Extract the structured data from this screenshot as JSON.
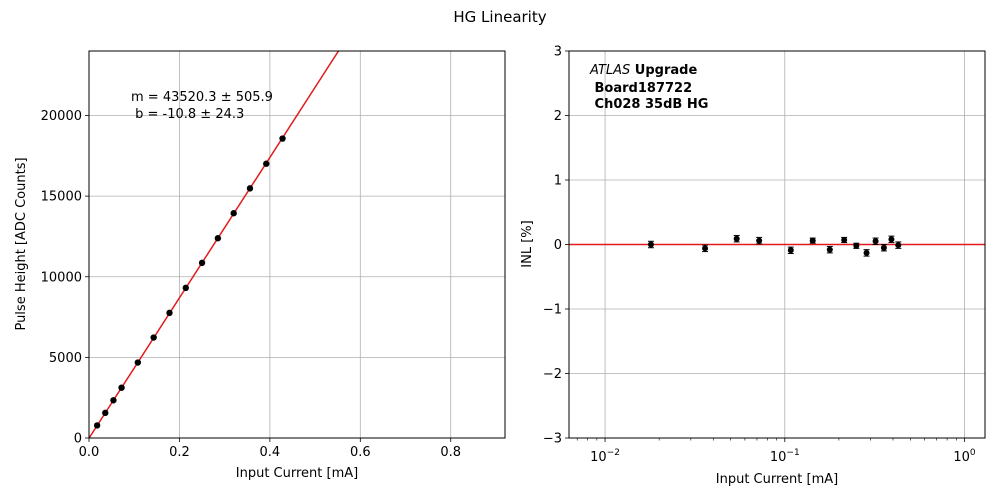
{
  "figure": {
    "title": "HG Linearity"
  },
  "chart_data": [
    {
      "type": "scatter",
      "title": "",
      "xlabel": "Input Current [mA]",
      "ylabel": "Pulse Height [ADC Counts]",
      "xlim": [
        0,
        0.92
      ],
      "ylim": [
        0,
        24000
      ],
      "xticks": [
        0,
        0.2,
        0.4,
        0.6,
        0.8
      ],
      "xtick_labels": [
        "0.0",
        "0.2",
        "0.4",
        "0.6",
        "0.8"
      ],
      "yticks": [
        0,
        5000,
        10000,
        15000,
        20000
      ],
      "ytick_labels": [
        "0",
        "5000",
        "10000",
        "15000",
        "20000"
      ],
      "grid": true,
      "annotation": [
        "m = 43520.3 ± 505.9",
        " b = -10.8 ± 24.3"
      ],
      "fit": {
        "slope": 43520.3,
        "intercept": -10.8,
        "color": "#e31a1c"
      },
      "series": [
        {
          "color": "#000000",
          "x": [
            0.018,
            0.036,
            0.054,
            0.072,
            0.108,
            0.143,
            0.178,
            0.214,
            0.25,
            0.285,
            0.32,
            0.356,
            0.392,
            0.428
          ],
          "y": [
            780,
            1560,
            2340,
            3120,
            4680,
            6230,
            7760,
            9310,
            10860,
            12390,
            13940,
            15480,
            17010,
            18570
          ]
        }
      ]
    },
    {
      "type": "scatter",
      "title": "",
      "xlabel": "Input Current [mA]",
      "ylabel": "INL [%]",
      "xscale": "log",
      "xlim": [
        0.0063,
        1.3
      ],
      "ylim": [
        -3,
        3
      ],
      "xticks": [
        0.01,
        0.1,
        1
      ],
      "xtick_labels": [
        [
          "10",
          "−2"
        ],
        [
          "10",
          "−1"
        ],
        [
          "10",
          "0"
        ]
      ],
      "yticks": [
        -3,
        -2,
        -1,
        0,
        1,
        2,
        3
      ],
      "ytick_labels": [
        "−3",
        "−2",
        "−1",
        "0",
        "1",
        "2",
        "3"
      ],
      "grid": true,
      "reference_line": {
        "y": 0,
        "color": "#e31a1c"
      },
      "label_lines": [
        {
          "italic": "ATLAS",
          "bold": " Upgrade"
        },
        {
          "italic": "",
          "bold": " Board187722"
        },
        {
          "italic": "",
          "bold": " Ch028 35dB HG"
        }
      ],
      "series": [
        {
          "color": "#000000",
          "x": [
            0.018,
            0.036,
            0.054,
            0.072,
            0.108,
            0.143,
            0.178,
            0.214,
            0.25,
            0.285,
            0.32,
            0.356,
            0.392,
            0.428
          ],
          "y": [
            0.0,
            -0.06,
            0.09,
            0.06,
            -0.09,
            0.06,
            -0.08,
            0.07,
            -0.02,
            -0.13,
            0.05,
            -0.05,
            0.08,
            -0.01
          ],
          "yerr": [
            0.05,
            0.05,
            0.05,
            0.05,
            0.05,
            0.04,
            0.05,
            0.04,
            0.04,
            0.05,
            0.05,
            0.05,
            0.05,
            0.05
          ]
        }
      ]
    }
  ]
}
